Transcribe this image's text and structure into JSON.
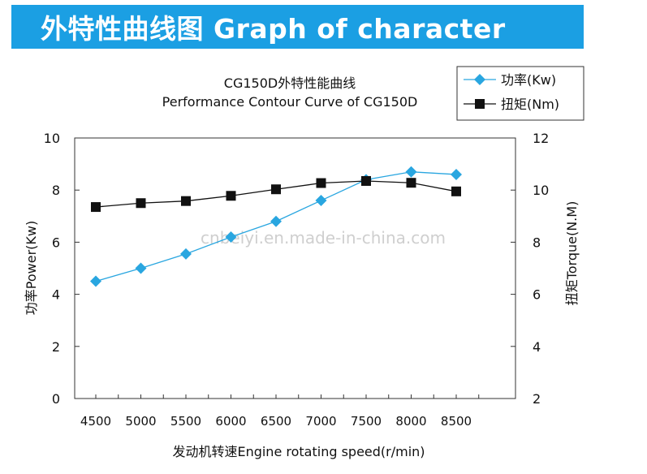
{
  "header": {
    "banner_title": "外特性曲线图 Graph of character"
  },
  "chart_data": {
    "type": "line",
    "title_cn": "CG150D外特性能曲线",
    "title_en": "Performance Contour Curve of CG150D",
    "xlabel": "发动机转速Engine rotating speed(r/min)",
    "ylabel_left": "功率Power(Kw)",
    "ylabel_right": "扭矩Torque(N.M)",
    "x": [
      4500,
      5000,
      5500,
      6000,
      6500,
      7000,
      7500,
      8000,
      8500
    ],
    "x_ticks": [
      "4500",
      "5000",
      "5500",
      "6000",
      "6500",
      "7000",
      "7500",
      "8000",
      "8500"
    ],
    "ylim_left": [
      0,
      10
    ],
    "yticks_left": [
      "0",
      "2",
      "4",
      "6",
      "8",
      "10"
    ],
    "ylim_right": [
      2,
      12
    ],
    "yticks_right": [
      "2",
      "4",
      "6",
      "8",
      "10",
      "12"
    ],
    "grid": false,
    "legend_position": "top-right",
    "series": [
      {
        "name": "功率(Kw)",
        "axis": "left",
        "marker": "diamond",
        "color": "#29a6e0",
        "values": [
          4.5,
          5.0,
          5.55,
          6.2,
          6.8,
          7.6,
          8.4,
          8.7,
          8.6
        ]
      },
      {
        "name": "扭矩(Nm)",
        "axis": "right",
        "marker": "square",
        "color": "#111111",
        "values": [
          9.35,
          9.5,
          9.58,
          9.78,
          10.03,
          10.27,
          10.35,
          10.28,
          9.95
        ]
      }
    ],
    "watermark": "cnbeiyi.en.made-in-china.com"
  }
}
